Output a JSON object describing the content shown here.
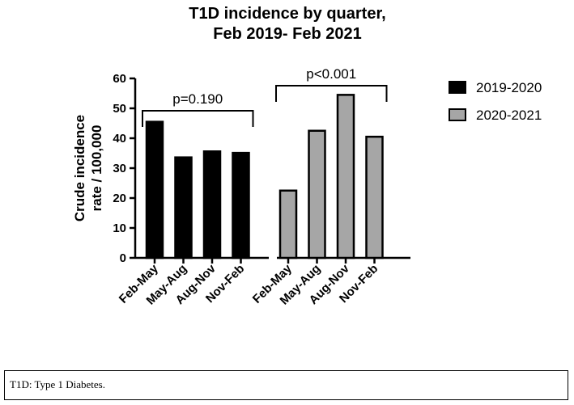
{
  "chart_data": {
    "type": "bar",
    "title": [
      "T1D incidence by quarter,",
      "Feb 2019- Feb 2021"
    ],
    "ylabel": [
      "Crude incidence",
      "rate / 100,000"
    ],
    "xlabel": "",
    "ylim": [
      0,
      60
    ],
    "yticks": [
      0,
      10,
      20,
      30,
      40,
      50,
      60
    ],
    "grid": false,
    "legend_position": "right",
    "groups": [
      {
        "name": "2019-2020",
        "color": "#000000",
        "categories": [
          "Feb-May",
          "May-Aug",
          "Aug-Nov",
          "Nov-Feb"
        ],
        "values": [
          45.5,
          33.6,
          35.6,
          35.1
        ],
        "bracket_label": "p=0.190"
      },
      {
        "name": "2020-2021",
        "color": "#a6a6a6",
        "categories": [
          "Feb-May",
          "May-Aug",
          "Aug-Nov",
          "Nov-Feb"
        ],
        "values": [
          22.5,
          42.5,
          54.5,
          40.5
        ],
        "bracket_label": "p<0.001"
      }
    ]
  },
  "caption": "T1D: Type 1 Diabetes."
}
